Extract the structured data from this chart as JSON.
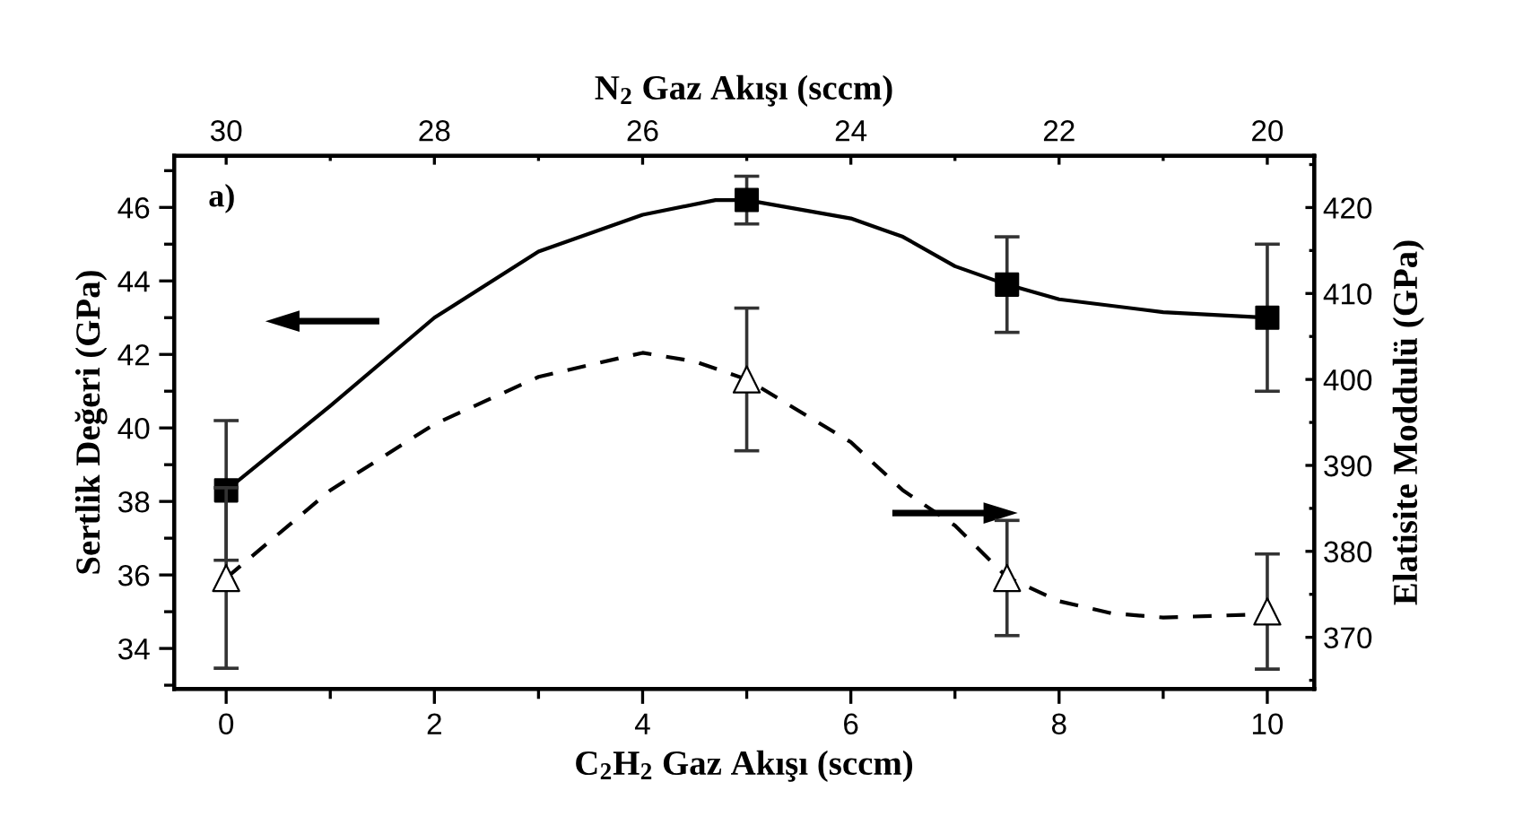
{
  "chart_data": {
    "type": "scatter",
    "xlabel": "C$_{2}$H$_{2}$ Gaz Akışı (sccm)",
    "x2label": "N$_{2}$ Gaz Akışı (sccm)",
    "ylabel": "Sertlik Değeri (GPa)",
    "y2label": "Elatisite Moddulü (GPa)",
    "annotations": [
      "a)"
    ],
    "xlim": [
      -0.5,
      10.45
    ],
    "xticks": [
      0,
      2,
      4,
      6,
      8,
      10
    ],
    "x2lim": [
      30.5,
      19.55
    ],
    "x2ticks": [
      30,
      28,
      26,
      24,
      22,
      20
    ],
    "ylim": [
      32.9,
      47.4
    ],
    "yticks": [
      34,
      36,
      38,
      40,
      42,
      44,
      46
    ],
    "y2lim": [
      364,
      426
    ],
    "y2ticks": [
      370,
      380,
      390,
      400,
      410,
      420
    ],
    "series": [
      {
        "type": "line",
        "line_style": "solid",
        "marker": "none",
        "color": "#000000",
        "x": [
          0,
          1,
          2,
          3,
          4,
          4.7,
          5,
          6,
          6.5,
          7,
          7.5,
          8,
          9,
          10
        ],
        "values": [
          38.3,
          40.6,
          43.0,
          44.8,
          45.8,
          46.2,
          46.2,
          45.7,
          45.2,
          44.4,
          43.9,
          43.5,
          43.15,
          43.0
        ]
      },
      {
        "type": "line",
        "axis": "y2",
        "line_style": "dashed",
        "marker": "none",
        "color": "#000000",
        "x": [
          0,
          1,
          2,
          3,
          4,
          4.5,
          5,
          6,
          6.5,
          7,
          7.5,
          8,
          8.5,
          9,
          10
        ],
        "values": [
          376.9,
          387.1,
          394.8,
          400.3,
          403.1,
          402.1,
          400,
          392.7,
          387.1,
          383,
          377,
          374.2,
          372.8,
          372.3,
          372.7
        ]
      },
      {
        "marker": "square",
        "color": "#000000",
        "x": [
          0,
          5,
          7.5,
          10
        ],
        "values": [
          38.3,
          46.2,
          43.9,
          43.0
        ],
        "errors": [
          1.9,
          0.65,
          1.3,
          2.0
        ]
      },
      {
        "axis": "y2",
        "marker": "triangle",
        "color": "#000000",
        "x": [
          0,
          5,
          7.5,
          10
        ],
        "values": [
          376.9,
          400,
          376.9,
          373.0
        ],
        "errors": [
          10.5,
          8.3,
          6.7,
          6.7
        ]
      }
    ]
  }
}
